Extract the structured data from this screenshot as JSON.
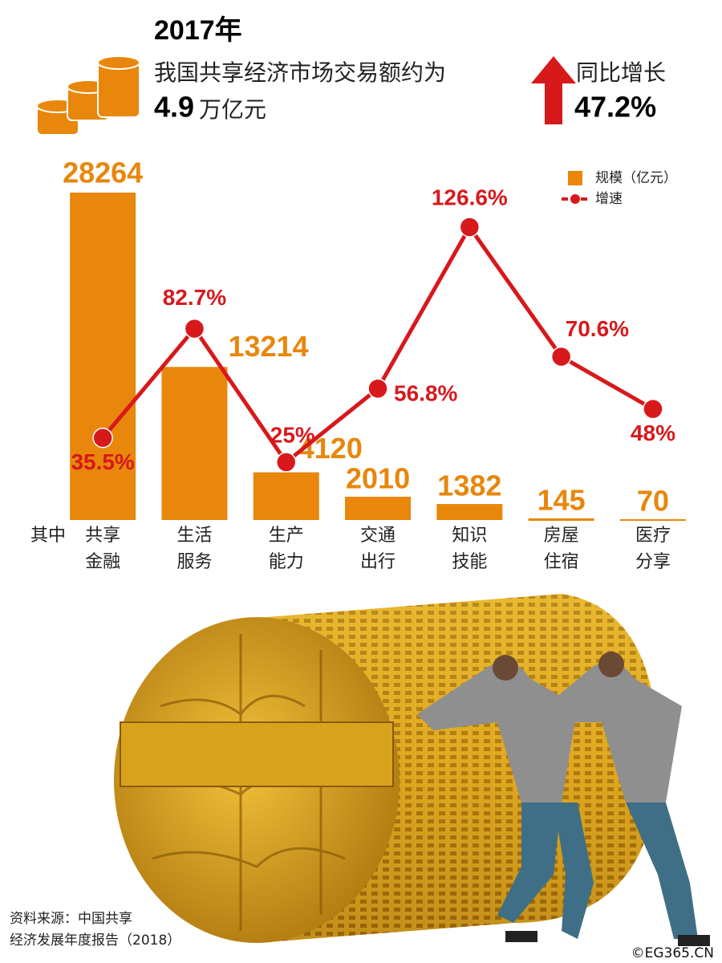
{
  "header": {
    "year": "2017年",
    "line": "我国共享经济市场交易额约为",
    "amount": "4.9",
    "amount_unit": "万亿元",
    "growth_label": "同比增长",
    "growth_value": "47.2%"
  },
  "chart_data": {
    "type": "bar-line",
    "category_prefix": "其中",
    "categories": [
      [
        "共享",
        "金融"
      ],
      [
        "生活",
        "服务"
      ],
      [
        "生产",
        "能力"
      ],
      [
        "交通",
        "出行"
      ],
      [
        "知识",
        "技能"
      ],
      [
        "房屋",
        "住宿"
      ],
      [
        "医疗",
        "分享"
      ]
    ],
    "series": [
      {
        "name": "规模（亿元）",
        "type": "bar",
        "color": "#e8870c",
        "values": [
          28264,
          13214,
          4120,
          2010,
          1382,
          145,
          70
        ]
      },
      {
        "name": "增速",
        "type": "line",
        "color": "#d7191c",
        "values": [
          35.5,
          82.7,
          25,
          56.8,
          126.6,
          70.6,
          48
        ],
        "value_labels": [
          "35.5%",
          "82.7%",
          "25%",
          "56.8%",
          "126.6%",
          "70.6%",
          "48%"
        ]
      }
    ]
  },
  "footer": {
    "source": [
      "资料来源：中国共享",
      "经济发展年度报告（2018）"
    ],
    "credit": "©EG365.CN"
  }
}
